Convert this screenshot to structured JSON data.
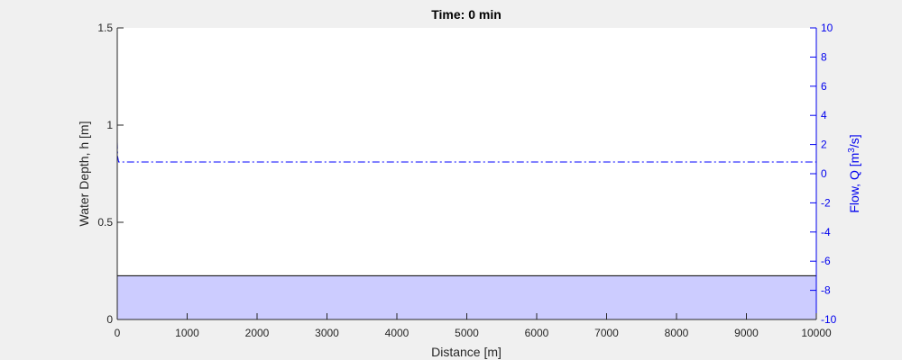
{
  "chart_data": {
    "type": "area",
    "title": "Time: 0 min",
    "xlabel": "Distance [m]",
    "ylabel_left": "Water Depth, h [m]",
    "ylabel_right": "Flow, Q [m3/s]",
    "xlim": [
      0,
      10000
    ],
    "ylim_left": [
      0,
      1.5
    ],
    "ylim_right": [
      -10,
      10
    ],
    "x_ticks": [
      0,
      1000,
      2000,
      3000,
      4000,
      5000,
      6000,
      7000,
      8000,
      9000,
      10000
    ],
    "y_ticks_left": [
      0,
      0.5,
      1,
      1.5
    ],
    "y_ticks_left_labels": [
      "0",
      "0.5",
      "1",
      "1.5"
    ],
    "y_ticks_right": [
      -10,
      -8,
      -6,
      -4,
      -2,
      0,
      2,
      4,
      6,
      8,
      10
    ],
    "grid": false,
    "series": [
      {
        "name": "Water Depth",
        "axis": "left",
        "style": "filled area",
        "color": "#ccccff",
        "x": [
          0,
          20,
          10000
        ],
        "values": [
          0.225,
          0.225,
          0.225
        ]
      },
      {
        "name": "Flow",
        "axis": "right",
        "style": "dash-dot line",
        "color": "#0000ff",
        "x": [
          0,
          5,
          20,
          10000
        ],
        "values": [
          2.2,
          1.2,
          0.8,
          0.8
        ]
      }
    ]
  },
  "labels": {
    "title": "Time: 0 min",
    "xlabel": "Distance [m]",
    "ylabel_left": "Water Depth, h [m]",
    "ylabel_right_prefix": "Flow, Q [m",
    "ylabel_right_sup": "3",
    "ylabel_right_suffix": "/s]"
  },
  "colors": {
    "background": "#f0f0f0",
    "plot_bg": "#ffffff",
    "depth_fill": "#ccccff",
    "flow_line": "#0000ff",
    "right_axis": "#0000ee"
  }
}
